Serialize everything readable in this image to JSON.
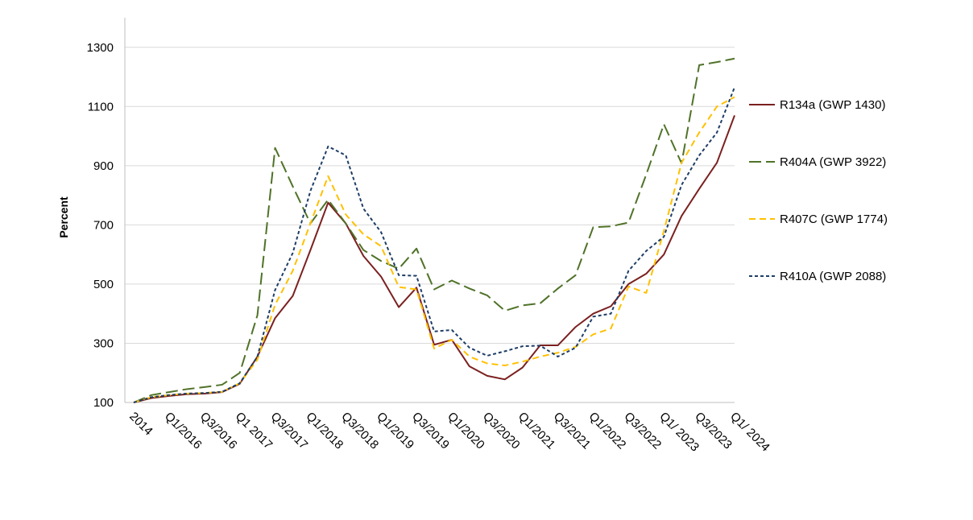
{
  "chart_data": {
    "type": "line",
    "title": "",
    "xlabel": "",
    "ylabel": "Percent",
    "ylim": [
      100,
      1400
    ],
    "yticks": [
      100,
      300,
      500,
      700,
      900,
      1100,
      1300
    ],
    "grid": "horizontal",
    "legend_position": "right",
    "x_tick_labels": [
      "2014",
      "Q1/2016",
      "Q3/2016",
      "Q1 2017",
      "Q3/2017",
      "Q1/2018",
      "Q3/2018",
      "Q1/2019",
      "Q3/2019",
      "Q1/2020",
      "Q3/2020",
      "Q1/2021",
      "Q3/2021",
      "Q1/2022",
      "Q3/2022",
      "Q1/ 2023",
      "Q3/2023",
      "Q1/ 2024"
    ],
    "series": [
      {
        "name": "R134a (GWP 1430)",
        "color": "#7B2020",
        "dash": "solid",
        "values": [
          100,
          115,
          122,
          128,
          130,
          135,
          163,
          255,
          385,
          460,
          615,
          775,
          705,
          595,
          525,
          422,
          488,
          295,
          312,
          222,
          190,
          178,
          218,
          293,
          293,
          355,
          400,
          425,
          500,
          535,
          600,
          730,
          822,
          910,
          1070
        ]
      },
      {
        "name": "R404A (GWP 3922)",
        "color": "#4F7228",
        "dash": "long",
        "values": [
          100,
          125,
          135,
          145,
          152,
          160,
          200,
          395,
          960,
          830,
          705,
          785,
          705,
          615,
          578,
          552,
          620,
          482,
          512,
          485,
          462,
          410,
          428,
          435,
          485,
          530,
          692,
          695,
          708,
          870,
          1040,
          908,
          1240,
          1250,
          1262
        ]
      },
      {
        "name": "R407C (GWP 1774)",
        "color": "#FFC000",
        "dash": "medium",
        "values": [
          100,
          118,
          125,
          130,
          132,
          136,
          165,
          245,
          430,
          545,
          705,
          865,
          735,
          668,
          628,
          490,
          482,
          282,
          312,
          255,
          232,
          225,
          238,
          255,
          268,
          288,
          330,
          350,
          492,
          470,
          680,
          910,
          1012,
          1100,
          1132
        ]
      },
      {
        "name": "R410A (GWP 2088)",
        "color": "#1F3E66",
        "dash": "short",
        "values": [
          100,
          118,
          125,
          130,
          132,
          136,
          165,
          255,
          480,
          605,
          815,
          965,
          935,
          755,
          675,
          530,
          528,
          340,
          345,
          285,
          258,
          273,
          290,
          292,
          255,
          285,
          390,
          400,
          545,
          612,
          660,
          835,
          935,
          1012,
          1165
        ]
      }
    ]
  }
}
